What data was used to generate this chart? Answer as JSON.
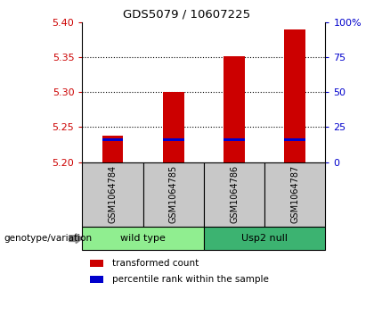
{
  "title": "GDS5079 / 10607225",
  "samples": [
    "GSM1064784",
    "GSM1064785",
    "GSM1064786",
    "GSM1064787"
  ],
  "red_bar_tops": [
    5.238,
    5.3,
    5.352,
    5.39
  ],
  "blue_marker_values": [
    5.232,
    5.232,
    5.232,
    5.232
  ],
  "bar_bottom": 5.2,
  "ylim_left": [
    5.2,
    5.4
  ],
  "yticks_left": [
    5.2,
    5.25,
    5.3,
    5.35,
    5.4
  ],
  "yticks_right": [
    0,
    25,
    50,
    75,
    100
  ],
  "ylim_right": [
    0,
    100
  ],
  "groups": [
    {
      "label": "wild type",
      "indices": [
        0,
        1
      ],
      "color": "#90ee90"
    },
    {
      "label": "Usp2 null",
      "indices": [
        2,
        3
      ],
      "color": "#3cb371"
    }
  ],
  "left_tick_color": "#cc0000",
  "right_tick_color": "#0000cc",
  "bar_color_red": "#cc0000",
  "bar_color_blue": "#0000cc",
  "bar_width": 0.35,
  "group_label_prefix": "genotype/variation",
  "legend_items": [
    {
      "color": "#cc0000",
      "label": "transformed count"
    },
    {
      "color": "#0000cc",
      "label": "percentile rank within the sample"
    }
  ],
  "bg_color": "#c8c8c8",
  "plot_bg_color": "white"
}
